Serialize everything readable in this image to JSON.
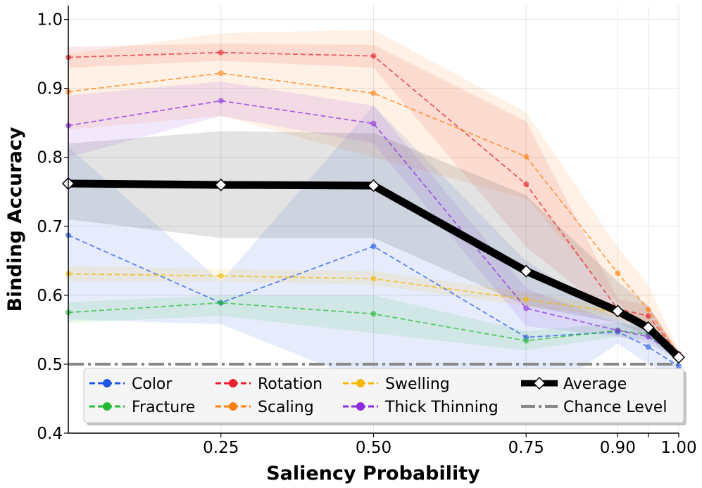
{
  "chart_data": {
    "type": "line",
    "title": "",
    "xlabel": "Saliency Probability",
    "ylabel": "Binding Accuracy",
    "xlim": [
      0.0,
      1.0
    ],
    "ylim": [
      0.4,
      1.02
    ],
    "grid": true,
    "x": [
      0.0,
      0.25,
      0.5,
      0.75,
      0.9,
      0.95,
      1.0
    ],
    "x_ticks": [
      {
        "value": 0.25,
        "label": "0.25"
      },
      {
        "value": 0.5,
        "label": "0.50"
      },
      {
        "value": 0.75,
        "label": "0.75"
      },
      {
        "value": 0.9,
        "label": "0.90"
      },
      {
        "value": 0.95,
        "label": ""
      },
      {
        "value": 1.0,
        "label": "1.00"
      }
    ],
    "y_ticks": [
      {
        "value": 0.4,
        "label": "0.4"
      },
      {
        "value": 0.5,
        "label": "0.5"
      },
      {
        "value": 0.6,
        "label": "0.6"
      },
      {
        "value": 0.7,
        "label": "0.7"
      },
      {
        "value": 0.8,
        "label": "0.8"
      },
      {
        "value": 0.9,
        "label": "0.9"
      },
      {
        "value": 1.0,
        "label": "1.0"
      }
    ],
    "legend_position": "bottom",
    "series": [
      {
        "name": "Color",
        "color": "#1f56e6",
        "values": [
          0.687,
          0.589,
          0.671,
          0.539,
          0.547,
          0.525,
          0.497
        ],
        "lower": [
          0.565,
          0.558,
          0.47,
          0.44,
          0.53,
          0.5,
          0.48
        ],
        "upper": [
          0.815,
          0.62,
          0.875,
          0.65,
          0.565,
          0.55,
          0.51
        ]
      },
      {
        "name": "Fracture",
        "color": "#22bb33",
        "values": [
          0.575,
          0.589,
          0.573,
          0.534,
          0.549,
          0.543,
          0.51
        ],
        "lower": [
          0.56,
          0.57,
          0.545,
          0.52,
          0.54,
          0.535,
          0.505
        ],
        "upper": [
          0.59,
          0.6,
          0.6,
          0.548,
          0.56,
          0.552,
          0.515
        ]
      },
      {
        "name": "Rotation",
        "color": "#e8212c",
        "values": [
          0.945,
          0.952,
          0.947,
          0.761,
          0.58,
          0.57,
          0.515
        ],
        "lower": [
          0.93,
          0.94,
          0.93,
          0.67,
          0.565,
          0.555,
          0.51
        ],
        "upper": [
          0.96,
          0.965,
          0.963,
          0.852,
          0.595,
          0.585,
          0.52
        ]
      },
      {
        "name": "Scaling",
        "color": "#ff7f0e",
        "values": [
          0.895,
          0.922,
          0.893,
          0.801,
          0.632,
          0.579,
          0.513
        ],
        "lower": [
          0.84,
          0.86,
          0.8,
          0.74,
          0.59,
          0.55,
          0.505
        ],
        "upper": [
          0.95,
          0.98,
          0.985,
          0.865,
          0.67,
          0.615,
          0.52
        ]
      },
      {
        "name": "Swelling",
        "color": "#f5b800",
        "values": [
          0.631,
          0.628,
          0.624,
          0.594,
          0.575,
          0.557,
          0.51
        ],
        "lower": [
          0.62,
          0.62,
          0.615,
          0.585,
          0.568,
          0.55,
          0.505
        ],
        "upper": [
          0.642,
          0.638,
          0.635,
          0.605,
          0.582,
          0.565,
          0.515
        ]
      },
      {
        "name": "Thick Thinning",
        "color": "#8a2be2",
        "values": [
          0.846,
          0.882,
          0.849,
          0.581,
          0.549,
          0.54,
          0.51
        ],
        "lower": [
          0.8,
          0.86,
          0.82,
          0.555,
          0.54,
          0.53,
          0.505
        ],
        "upper": [
          0.89,
          0.91,
          0.875,
          0.61,
          0.56,
          0.55,
          0.515
        ]
      }
    ],
    "average": {
      "name": "Average",
      "color": "#000000",
      "values": [
        0.762,
        0.76,
        0.759,
        0.635,
        0.577,
        0.553,
        0.51
      ],
      "lower": [
        0.71,
        0.683,
        0.683,
        0.585,
        0.56,
        0.54,
        0.505
      ],
      "upper": [
        0.82,
        0.838,
        0.835,
        0.745,
        0.62,
        0.585,
        0.515
      ]
    },
    "chance_level": {
      "name": "Chance Level",
      "value": 0.5,
      "color": "#888888"
    }
  }
}
